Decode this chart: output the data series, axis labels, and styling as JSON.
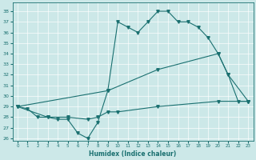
{
  "xlabel": "Humidex (Indice chaleur)",
  "bg_color": "#cce8e8",
  "line_color": "#1a7070",
  "xlim": [
    -0.5,
    23.5
  ],
  "ylim": [
    25.8,
    38.8
  ],
  "yticks": [
    26,
    27,
    28,
    29,
    30,
    31,
    32,
    33,
    34,
    35,
    36,
    37,
    38
  ],
  "xticks": [
    0,
    1,
    2,
    3,
    4,
    5,
    6,
    7,
    8,
    9,
    10,
    11,
    12,
    13,
    14,
    15,
    16,
    17,
    18,
    19,
    20,
    21,
    22,
    23
  ],
  "line1_x": [
    0,
    1,
    2,
    3,
    4,
    5,
    6,
    7,
    8,
    9,
    10,
    11,
    12,
    13,
    14,
    15,
    16,
    17,
    18,
    19,
    20,
    21,
    22,
    23
  ],
  "line1_y": [
    29,
    28.8,
    28,
    28,
    27.8,
    27.8,
    26.5,
    26,
    27.5,
    30.5,
    37,
    36.5,
    36,
    37,
    38,
    38,
    37,
    37,
    36.5,
    35.5,
    34,
    32,
    29.5,
    29.5
  ],
  "line2_x": [
    0,
    9,
    14,
    20,
    21,
    23
  ],
  "line2_y": [
    29,
    30.5,
    32.5,
    34,
    32,
    29.5
  ],
  "line3_x": [
    0,
    3,
    5,
    7,
    8,
    9,
    10,
    14,
    20,
    23
  ],
  "line3_y": [
    29,
    28,
    28,
    27.8,
    28,
    28.5,
    28.5,
    29,
    29.5,
    29.5
  ]
}
